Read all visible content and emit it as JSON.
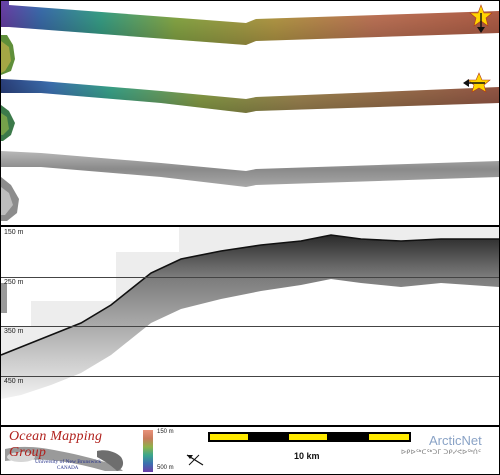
{
  "profile": {
    "depth_labels": [
      "150 m",
      "250 m",
      "350 m",
      "450 m"
    ]
  },
  "legend": {
    "colorbar": {
      "top_label": "150 m",
      "bottom_label": "500 m",
      "colors": [
        "#e8927a",
        "#c97a5c",
        "#8fb24a",
        "#3aa68c",
        "#3c6fb0",
        "#6b3fa8"
      ]
    },
    "scalebar": {
      "label": "10 km",
      "colors": [
        "#ffea00",
        "#000000"
      ]
    }
  },
  "branding": {
    "org_name": "Ocean Mapping Group",
    "university": "University of New Brunswick",
    "country": "CANADA",
    "partner_name": "ArcticNet",
    "partner_syllabics": "ᐅᑭᐅᖅᑕᖅᑐᒥ ᑐᑭᓯᕙᐅᖅᑏᑦ"
  },
  "colors": {
    "accent_red": "#b0201c",
    "accent_blue": "#23308a",
    "arcticnet_blue": "#8aa3c6"
  },
  "icons": [
    "ship-marker-icon-top",
    "ship-marker-icon-middle",
    "north-arrow-icon"
  ]
}
